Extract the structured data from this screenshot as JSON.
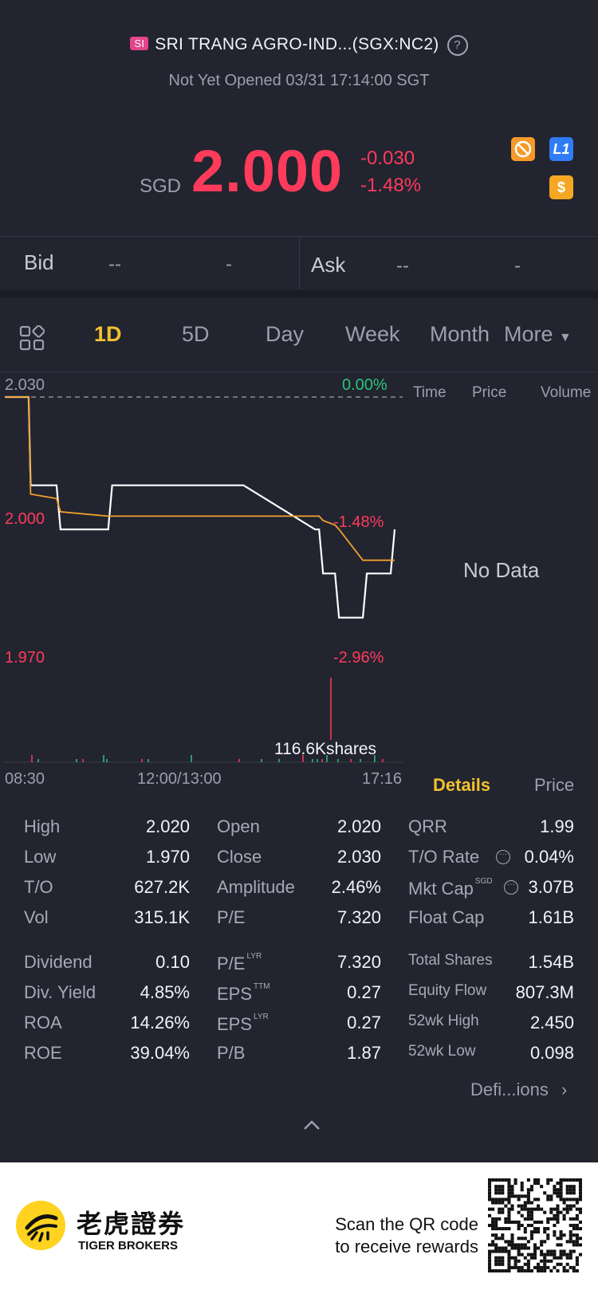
{
  "header": {
    "market_tag": "SI",
    "title": "SRI TRANG AGRO-IND...(SGX:NC2)",
    "help_icon": "?",
    "status": "Not Yet Opened 03/31 17:14:00 SGT",
    "currency": "SGD",
    "price": "2.000",
    "change": "-0.030",
    "change_pct": "-1.48%",
    "badges": [
      {
        "icon": "no-short-icon",
        "color": "#f59a2a"
      },
      {
        "icon": "level-1-icon",
        "label": "L1",
        "color": "#2f7cf6"
      },
      {
        "icon": "dollar-icon",
        "label": "$",
        "color": "#f5a623"
      }
    ]
  },
  "quote": {
    "bid_label": "Bid",
    "bid_price": "--",
    "bid_size": "-",
    "ask_label": "Ask",
    "ask_price": "--",
    "ask_size": "-"
  },
  "tabs": [
    "1D",
    "5D",
    "Day",
    "Week",
    "Month",
    "More"
  ],
  "active_tab": "1D",
  "chart_data": {
    "type": "line",
    "price_axis": {
      "top": "2.030",
      "mid": "2.000",
      "bottom": "1.970"
    },
    "pct_axis": {
      "top": "0.00%",
      "mid": "-1.48%",
      "bottom": "-2.96%"
    },
    "y_range": [
      1.97,
      2.03
    ],
    "reference_price": 2.03,
    "time_labels": [
      "08:30",
      "12:00/13:00",
      "17:16"
    ],
    "volume_label": "116.6Kshares",
    "series": [
      {
        "color": "#ffffff",
        "values": [
          2.03,
          2.03,
          2.01,
          2.01,
          2.0,
          2.0,
          2.01,
          2.01,
          2.01,
          2.0,
          2.0,
          1.99,
          1.99,
          1.98,
          1.98,
          1.99,
          1.99,
          2.0
        ]
      },
      {
        "color": "#f0a030",
        "values": [
          2.03,
          2.03,
          2.008,
          2.007,
          2.004,
          2.003,
          2.003,
          2.003,
          2.003,
          2.003,
          2.003,
          2.002,
          2.001,
          2.0,
          1.993,
          1.993,
          1.993,
          1.993
        ]
      }
    ],
    "x_fractions": [
      0.0,
      0.06,
      0.065,
      0.13,
      0.14,
      0.26,
      0.27,
      0.59,
      0.6,
      0.78,
      0.79,
      0.8,
      0.83,
      0.84,
      0.9,
      0.91,
      0.97,
      0.98
    ],
    "trades_panel": {
      "columns": [
        "Time",
        "Price",
        "Volume"
      ],
      "empty": "No Data"
    }
  },
  "details_tabs": {
    "active": "Details",
    "other": "Price"
  },
  "stats": [
    {
      "label": "High",
      "value": "2.020"
    },
    {
      "label": "Open",
      "value": "2.020"
    },
    {
      "label": "QRR",
      "value": "1.99"
    },
    {
      "label": "Low",
      "value": "1.970"
    },
    {
      "label": "Close",
      "value": "2.030"
    },
    {
      "label": "T/O Rate",
      "value": "0.04%"
    },
    {
      "label": "T/O",
      "value": "627.2K"
    },
    {
      "label": "Amplitude",
      "value": "2.46%"
    },
    {
      "label": "Mkt Cap",
      "value": "3.07B",
      "sup": "SGD"
    },
    {
      "label": "Vol",
      "value": "315.1K"
    },
    {
      "label": "P/E",
      "value": "7.320"
    },
    {
      "label": "Float Cap",
      "value": "1.61B"
    },
    {
      "label": "Dividend",
      "value": "0.10"
    },
    {
      "label": "P/E",
      "value": "7.320",
      "sup": "LYR"
    },
    {
      "label": "Total Shares",
      "value": "1.54B"
    },
    {
      "label": "Div. Yield",
      "value": "4.85%"
    },
    {
      "label": "EPS",
      "value": "0.27",
      "sup": "TTM"
    },
    {
      "label": "Equity Flow",
      "value": "807.3M"
    },
    {
      "label": "ROA",
      "value": "14.26%"
    },
    {
      "label": "EPS",
      "value": "0.27",
      "sup": "LYR"
    },
    {
      "label": "52wk High",
      "value": "2.450"
    },
    {
      "label": "ROE",
      "value": "39.04%"
    },
    {
      "label": "P/B",
      "value": "1.87"
    },
    {
      "label": "52wk Low",
      "value": "0.098"
    }
  ],
  "definitions_link": "Defi...ions",
  "footer": {
    "brand_cn": "老虎證券",
    "brand_en": "TIGER BROKERS",
    "cta_line1": "Scan the QR code",
    "cta_line2": "to receive rewards"
  }
}
